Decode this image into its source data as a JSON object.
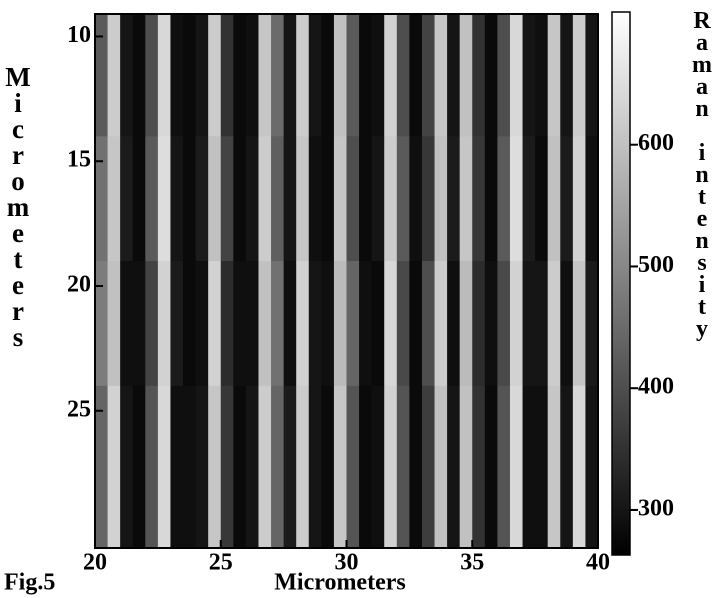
{
  "chart_data": {
    "type": "heatmap",
    "figure_label": "Fig.5",
    "x_label": "Micrometers",
    "y_label": "Micrometers",
    "colorbar_label": "Raman intensity",
    "xbins": [
      20,
      20.5,
      21,
      21.5,
      22,
      22.5,
      23,
      23.5,
      24,
      24.5,
      25,
      25.5,
      26,
      26.5,
      27,
      27.5,
      28,
      28.5,
      29,
      29.5,
      30,
      30.5,
      31,
      31.5,
      32,
      32.5,
      33,
      33.5,
      34,
      34.5,
      35,
      35.5,
      36,
      36.5,
      37,
      37.5,
      38,
      38.5,
      39,
      39.5,
      40
    ],
    "ybins": [
      9.1,
      14,
      19,
      24,
      30.5
    ],
    "z": [
      [
        420,
        620,
        300,
        280,
        400,
        640,
        290,
        280,
        300,
        620,
        350,
        280,
        290,
        610,
        450,
        300,
        620,
        300,
        280,
        600,
        420,
        280,
        290,
        630,
        400,
        280,
        380,
        610,
        300,
        600,
        350,
        280,
        400,
        640,
        300,
        290,
        610,
        300,
        620,
        300
      ],
      [
        460,
        610,
        310,
        280,
        420,
        650,
        300,
        280,
        310,
        600,
        380,
        280,
        300,
        620,
        430,
        300,
        610,
        290,
        280,
        610,
        400,
        280,
        300,
        620,
        420,
        290,
        360,
        600,
        310,
        610,
        360,
        280,
        420,
        650,
        310,
        280,
        600,
        310,
        630,
        290
      ],
      [
        480,
        600,
        290,
        290,
        380,
        630,
        310,
        280,
        290,
        630,
        340,
        290,
        290,
        600,
        460,
        290,
        630,
        300,
        290,
        590,
        440,
        290,
        280,
        640,
        390,
        280,
        400,
        620,
        290,
        590,
        340,
        290,
        390,
        630,
        300,
        300,
        620,
        290,
        610,
        310
      ],
      [
        440,
        630,
        300,
        280,
        410,
        640,
        290,
        290,
        300,
        610,
        360,
        280,
        300,
        620,
        440,
        310,
        620,
        300,
        280,
        610,
        410,
        280,
        290,
        630,
        410,
        280,
        370,
        600,
        300,
        600,
        350,
        280,
        410,
        640,
        290,
        290,
        610,
        300,
        640,
        300
      ]
    ],
    "xlim": [
      20,
      40
    ],
    "ylim": [
      9.1,
      30.5
    ],
    "y_inverted": true,
    "xticks": [
      20,
      25,
      30,
      35,
      40
    ],
    "yticks": [
      10,
      15,
      20,
      25
    ],
    "clim": [
      263,
      709
    ],
    "cticks": [
      300,
      400,
      500,
      600
    ],
    "colormap": [
      "#000000",
      "#ffffff"
    ]
  }
}
